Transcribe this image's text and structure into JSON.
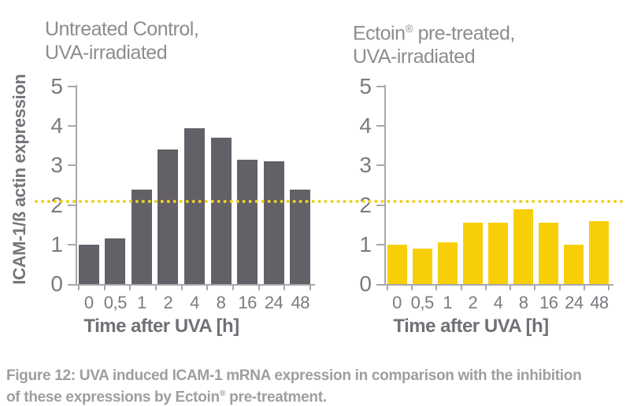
{
  "colors": {
    "background": "#ffffff",
    "axis": "#a9a7ab",
    "title_text": "#8d8d8d",
    "tick_text": "#7c7a80",
    "axis_title_text": "#717077",
    "caption_text": "#9e9e9e",
    "bar_gray": "#636167",
    "bar_yellow": "#f7cf08",
    "reference_line": "#f0d020"
  },
  "chart_data": [
    {
      "type": "bar",
      "title": "Untreated Control, UVA-irradiated",
      "title_lines": [
        "Untreated Control,",
        "UVA-irradiated"
      ],
      "categories": [
        "0",
        "0,5",
        "1",
        "2",
        "4",
        "8",
        "16",
        "24",
        "48"
      ],
      "values": [
        1.0,
        1.15,
        2.4,
        3.4,
        3.95,
        3.7,
        3.15,
        3.1,
        2.4
      ],
      "xlabel": "Time after UVA [h]",
      "ylabel": "ICAM-1/ß actin expression",
      "ylim": [
        0,
        5
      ],
      "yticks": [
        0,
        1,
        2,
        3,
        4,
        5
      ],
      "bar_color": "#636167",
      "grid": false,
      "legend": false,
      "reference_line": {
        "value": 2.05,
        "style": "dotted",
        "color": "#f0d020"
      }
    },
    {
      "type": "bar",
      "title": "Ectoin® pre-treated, UVA-irradiated",
      "title_lines": [
        "Ectoin® pre-treated,",
        "UVA-irradiated"
      ],
      "categories": [
        "0",
        "0,5",
        "1",
        "2",
        "4",
        "8",
        "16",
        "24",
        "48"
      ],
      "values": [
        1.0,
        0.9,
        1.05,
        1.55,
        1.55,
        1.9,
        1.55,
        1.0,
        1.6
      ],
      "xlabel": "Time after UVA [h]",
      "ylabel": "ICAM-1/ß actin expression",
      "ylim": [
        0,
        5
      ],
      "yticks": [
        0,
        1,
        2,
        3,
        4,
        5
      ],
      "bar_color": "#f7cf08",
      "grid": false,
      "legend": false,
      "reference_line": {
        "value": 2.05,
        "style": "dotted",
        "color": "#f0d020"
      }
    }
  ],
  "caption": {
    "lines": [
      "Figure 12: UVA induced ICAM-1 mRNA expression in comparison with the inhibition",
      "of these expressions by Ectoin® pre-treatment."
    ]
  }
}
